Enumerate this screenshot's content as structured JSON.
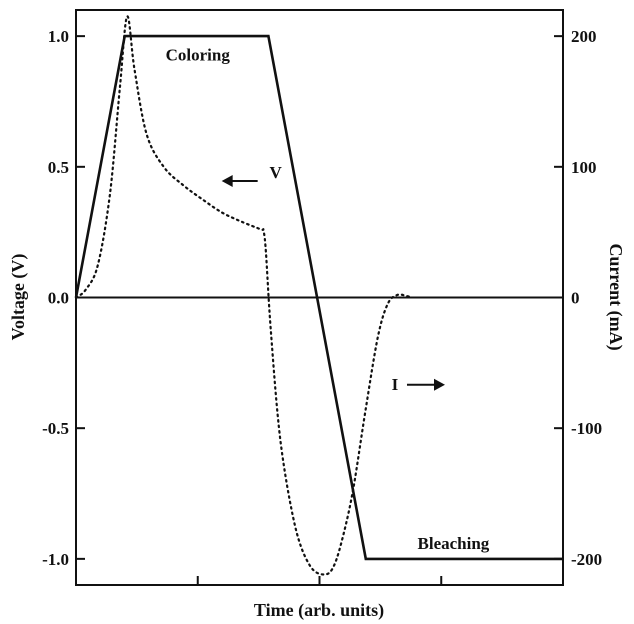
{
  "chart_data": {
    "type": "line",
    "title": "",
    "xlabel": "Time (arb. units)",
    "ylabel_left": "Voltage (V)",
    "ylabel_right": "Current (mA)",
    "xlim": [
      0,
      10
    ],
    "ylim_left": [
      -1.1,
      1.1
    ],
    "ylim_right": [
      -220,
      220
    ],
    "left_ticks": [
      1.0,
      0.5,
      0.0,
      -0.5,
      -1.0
    ],
    "left_tick_labels": [
      "1.0",
      "0.5",
      "0.0",
      "-0.5",
      "-1.0"
    ],
    "right_ticks": [
      200,
      100,
      0,
      -100,
      -200
    ],
    "right_tick_labels": [
      "200",
      "100",
      "0",
      "-100",
      "-200"
    ],
    "x_ticks": [
      0,
      2.5,
      5,
      7.5,
      10
    ],
    "grid": false,
    "series": [
      {
        "key": "V",
        "axis": "left",
        "style": "solid",
        "x": [
          0,
          1.0,
          3.95,
          5.95,
          10
        ],
        "y": [
          0,
          1.0,
          1.0,
          -1.0,
          -1.0
        ]
      },
      {
        "key": "I",
        "axis": "right",
        "style": "dotted",
        "x": [
          0,
          0.2,
          0.45,
          0.7,
          0.9,
          1.05,
          1.2,
          1.45,
          1.8,
          2.2,
          2.6,
          3.0,
          3.4,
          3.8,
          3.85,
          3.9,
          4.0,
          4.2,
          4.5,
          4.8,
          5.1,
          5.3,
          5.5,
          5.7,
          5.95,
          6.2,
          6.4,
          6.6,
          6.8,
          6.9
        ],
        "y": [
          0,
          6,
          25,
          80,
          160,
          215,
          175,
          125,
          100,
          86,
          75,
          65,
          58,
          52,
          51,
          35,
          -25,
          -110,
          -175,
          -205,
          -212,
          -205,
          -180,
          -145,
          -85,
          -30,
          -5,
          2,
          1,
          0
        ]
      }
    ],
    "annotations": [
      {
        "text": "Coloring",
        "x": 2.5,
        "y_left": 0.93
      },
      {
        "text": "V",
        "arrow": "left",
        "x": 4.1,
        "y_left": 0.48
      },
      {
        "text": "I",
        "arrow": "right",
        "x": 6.55,
        "y_left": -0.33
      },
      {
        "text": "Bleaching",
        "x": 7.75,
        "y_left": -0.94
      }
    ]
  }
}
